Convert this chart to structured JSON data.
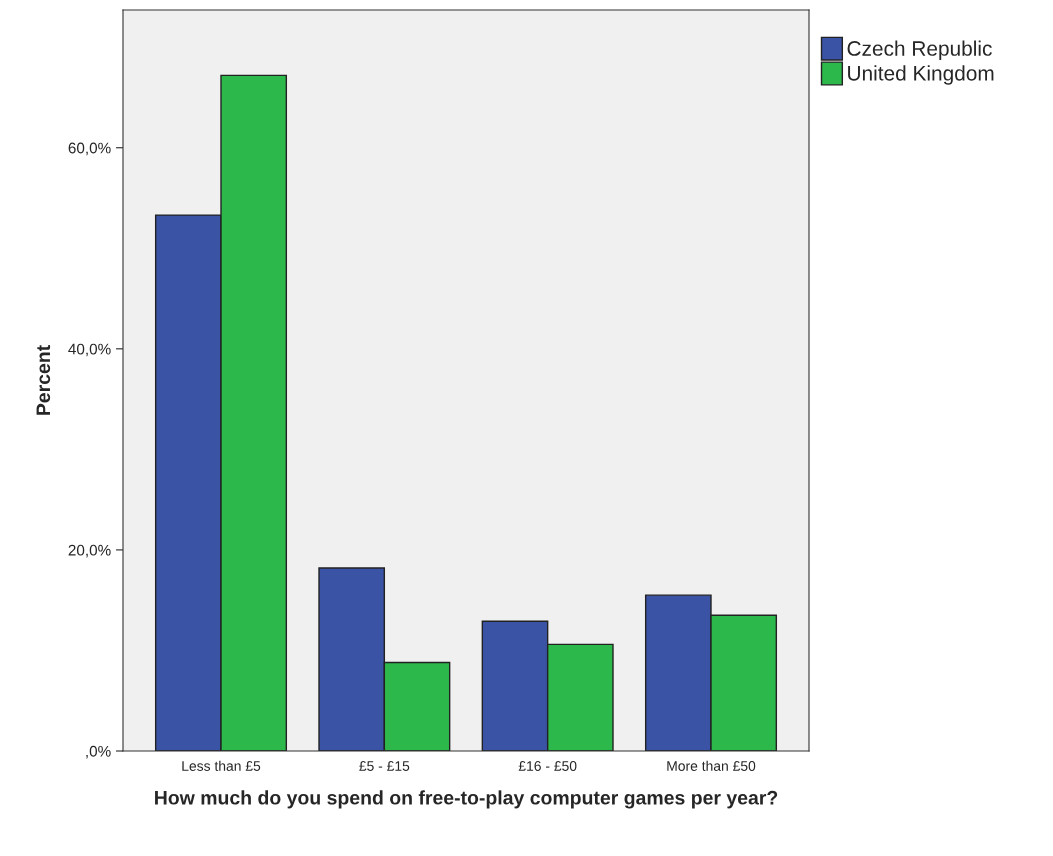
{
  "chart_data": {
    "type": "bar",
    "xlabel": "How much do you spend on free-to-play computer games per year?",
    "ylabel": "Percent",
    "categories": [
      "Less than £5",
      "£5 - £15",
      "£16 - £50",
      "More than £50"
    ],
    "series": [
      {
        "name": "Czech Republic",
        "color": "#3a53a4",
        "values": [
          53.3,
          18.2,
          12.9,
          15.5
        ]
      },
      {
        "name": "United Kingdom",
        "color": "#2db84b",
        "values": [
          67.2,
          8.8,
          10.6,
          13.5
        ]
      }
    ],
    "ylim": [
      0,
      73.7
    ],
    "yticks": [
      {
        "value": 0,
        "label": ",0%"
      },
      {
        "value": 20,
        "label": "20,0%"
      },
      {
        "value": 40,
        "label": "40,0%"
      },
      {
        "value": 60,
        "label": "60,0%"
      }
    ],
    "grid": false,
    "legend": "top right"
  }
}
